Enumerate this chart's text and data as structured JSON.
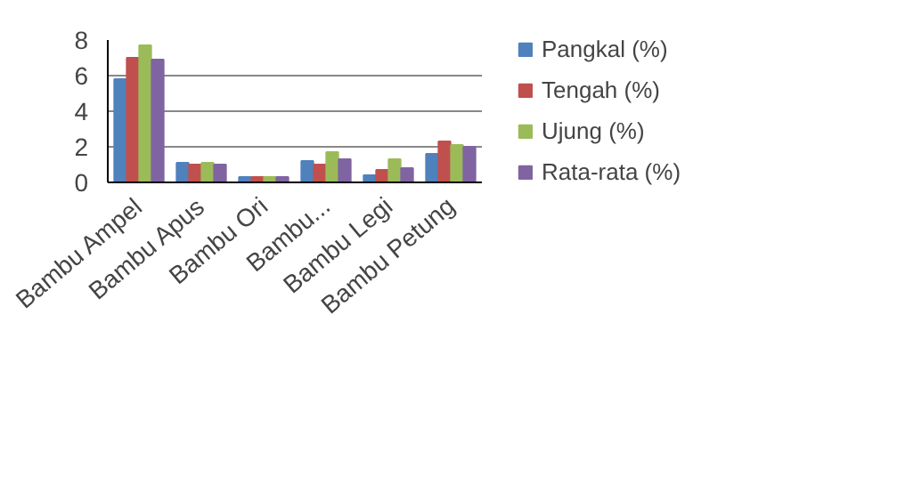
{
  "chart_data": {
    "type": "bar",
    "categories": [
      "Bambu Ampel",
      "Bambu Apus",
      "Bambu Ori",
      "Bambu...",
      "Bambu Legi",
      "Bambu Petung"
    ],
    "series": [
      {
        "name": "Pangkal (%)",
        "color": "#4f81bd",
        "values": [
          5.8,
          1.1,
          0.3,
          1.2,
          0.4,
          1.6
        ]
      },
      {
        "name": "Tengah (%)",
        "color": "#c0504d",
        "values": [
          7.0,
          1.0,
          0.3,
          1.0,
          0.7,
          2.3
        ]
      },
      {
        "name": "Ujung (%)",
        "color": "#9bbb59",
        "values": [
          7.7,
          1.1,
          0.3,
          1.7,
          1.3,
          2.1
        ]
      },
      {
        "name": "Rata-rata (%)",
        "color": "#8064a2",
        "values": [
          6.9,
          1.0,
          0.3,
          1.3,
          0.8,
          2.0
        ]
      }
    ],
    "ylim": [
      0,
      8
    ],
    "yticks": [
      0,
      2,
      4,
      6,
      8
    ],
    "grid": "y",
    "legend": "right"
  }
}
